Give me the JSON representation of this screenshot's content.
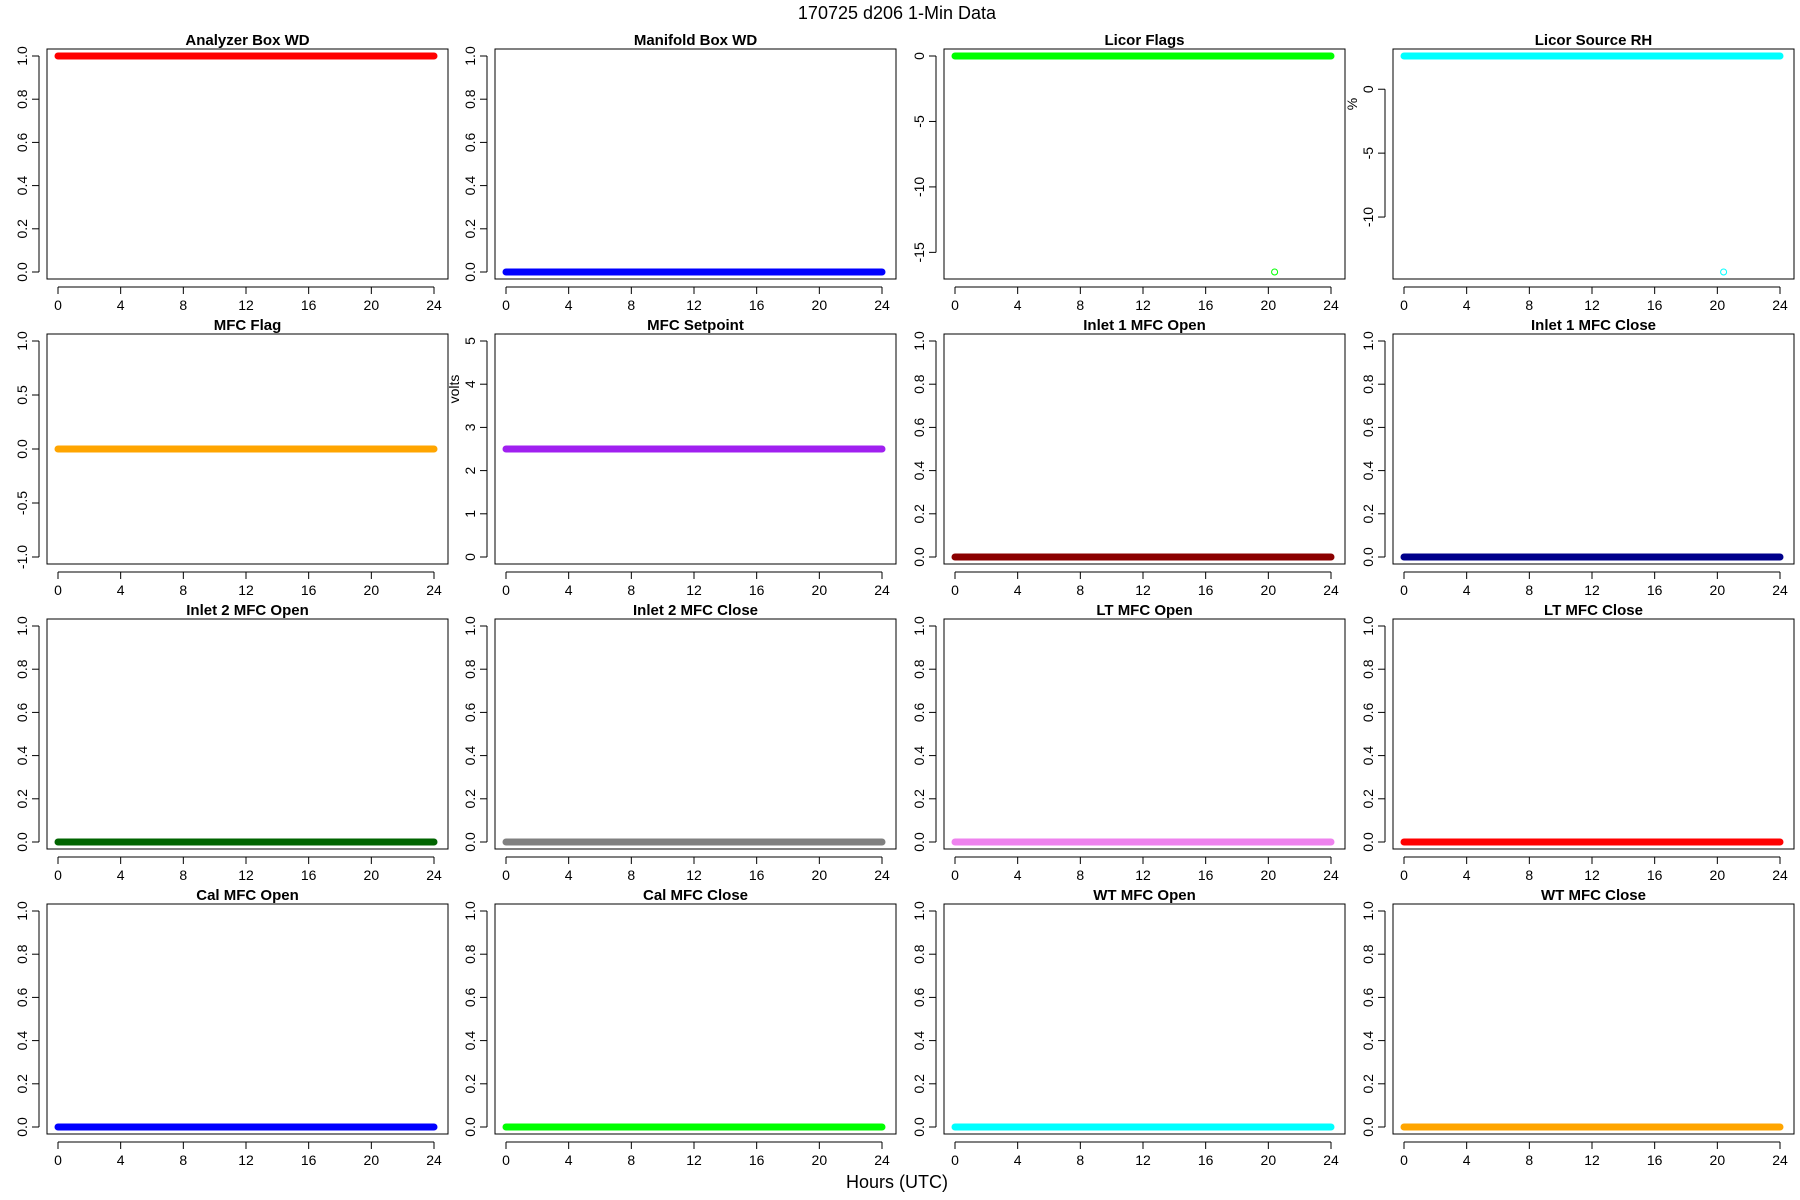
{
  "figure": {
    "title": "170725   d206   1-Min Data",
    "xlabel": "Hours (UTC)"
  },
  "chart_data": [
    {
      "type": "scatter",
      "title": "Analyzer Box WD",
      "ylabel": "",
      "color": "#ff0000",
      "xlim": [
        0,
        24
      ],
      "ylim": [
        0,
        1
      ],
      "yticks": [
        0,
        0.2,
        0.4,
        0.6,
        0.8,
        1.0
      ],
      "yticklabels": [
        "0.0",
        "0.2",
        "0.4",
        "0.6",
        "0.8",
        "1.0"
      ],
      "xticks": [
        0,
        4,
        8,
        12,
        16,
        20,
        24
      ],
      "series": [
        {
          "x_range": [
            0,
            24
          ],
          "y": 1.0
        }
      ],
      "outliers": []
    },
    {
      "type": "scatter",
      "title": "Manifold Box WD",
      "ylabel": "",
      "color": "#0000ff",
      "xlim": [
        0,
        24
      ],
      "ylim": [
        0,
        1
      ],
      "yticks": [
        0,
        0.2,
        0.4,
        0.6,
        0.8,
        1.0
      ],
      "yticklabels": [
        "0.0",
        "0.2",
        "0.4",
        "0.6",
        "0.8",
        "1.0"
      ],
      "xticks": [
        0,
        4,
        8,
        12,
        16,
        20,
        24
      ],
      "series": [
        {
          "x_range": [
            0,
            24
          ],
          "y": 0.0
        }
      ],
      "outliers": []
    },
    {
      "type": "scatter",
      "title": "Licor Flags",
      "ylabel": "",
      "color": "#00ff00",
      "xlim": [
        0,
        24
      ],
      "ylim": [
        -16.5,
        0
      ],
      "yticks": [
        -15,
        -10,
        -5,
        0
      ],
      "yticklabels": [
        "-15",
        "-10",
        "-5",
        "0"
      ],
      "xticks": [
        0,
        4,
        8,
        12,
        16,
        20,
        24
      ],
      "series": [
        {
          "x_range": [
            0,
            24
          ],
          "y": 0
        }
      ],
      "outliers": [
        {
          "x": 20.4,
          "y": -16.5
        }
      ]
    },
    {
      "type": "scatter",
      "title": "Licor Source RH",
      "ylabel": "%",
      "color": "#00ffff",
      "xlim": [
        0,
        24
      ],
      "ylim": [
        -14.3,
        2.6
      ],
      "yticks": [
        -10,
        -5,
        0
      ],
      "yticklabels": [
        "-10",
        "-5",
        "0"
      ],
      "xticks": [
        0,
        4,
        8,
        12,
        16,
        20,
        24
      ],
      "series": [
        {
          "x_range": [
            0,
            24
          ],
          "y": 2.6
        }
      ],
      "outliers": [
        {
          "x": 20.4,
          "y": -14.3
        }
      ]
    },
    {
      "type": "scatter",
      "title": "MFC Flag",
      "ylabel": "",
      "color": "#ffa500",
      "xlim": [
        0,
        24
      ],
      "ylim": [
        -1,
        1
      ],
      "yticks": [
        -1,
        -0.5,
        0,
        0.5,
        1
      ],
      "yticklabels": [
        "-1.0",
        "-0.5",
        "0.0",
        "0.5",
        "1.0"
      ],
      "xticks": [
        0,
        4,
        8,
        12,
        16,
        20,
        24
      ],
      "series": [
        {
          "x_range": [
            0,
            24
          ],
          "y": 0.0
        }
      ],
      "outliers": []
    },
    {
      "type": "scatter",
      "title": "MFC Setpoint",
      "ylabel": "volts",
      "color": "#a020f0",
      "xlim": [
        0,
        24
      ],
      "ylim": [
        0,
        5
      ],
      "yticks": [
        0,
        1,
        2,
        3,
        4,
        5
      ],
      "yticklabels": [
        "0",
        "1",
        "2",
        "3",
        "4",
        "5"
      ],
      "xticks": [
        0,
        4,
        8,
        12,
        16,
        20,
        24
      ],
      "series": [
        {
          "x_range": [
            0,
            24
          ],
          "y": 2.5
        }
      ],
      "outliers": []
    },
    {
      "type": "scatter",
      "title": "Inlet 1 MFC Open",
      "ylabel": "",
      "color": "#8b0000",
      "xlim": [
        0,
        24
      ],
      "ylim": [
        0,
        1
      ],
      "yticks": [
        0,
        0.2,
        0.4,
        0.6,
        0.8,
        1.0
      ],
      "yticklabels": [
        "0.0",
        "0.2",
        "0.4",
        "0.6",
        "0.8",
        "1.0"
      ],
      "xticks": [
        0,
        4,
        8,
        12,
        16,
        20,
        24
      ],
      "series": [
        {
          "x_range": [
            0,
            24
          ],
          "y": 0.0
        }
      ],
      "outliers": []
    },
    {
      "type": "scatter",
      "title": "Inlet 1 MFC Close",
      "ylabel": "",
      "color": "#00008b",
      "xlim": [
        0,
        24
      ],
      "ylim": [
        0,
        1
      ],
      "yticks": [
        0,
        0.2,
        0.4,
        0.6,
        0.8,
        1.0
      ],
      "yticklabels": [
        "0.0",
        "0.2",
        "0.4",
        "0.6",
        "0.8",
        "1.0"
      ],
      "xticks": [
        0,
        4,
        8,
        12,
        16,
        20,
        24
      ],
      "series": [
        {
          "x_range": [
            0,
            24
          ],
          "y": 0.0
        }
      ],
      "outliers": []
    },
    {
      "type": "scatter",
      "title": "Inlet 2 MFC Open",
      "ylabel": "",
      "color": "#006400",
      "xlim": [
        0,
        24
      ],
      "ylim": [
        0,
        1
      ],
      "yticks": [
        0,
        0.2,
        0.4,
        0.6,
        0.8,
        1.0
      ],
      "yticklabels": [
        "0.0",
        "0.2",
        "0.4",
        "0.6",
        "0.8",
        "1.0"
      ],
      "xticks": [
        0,
        4,
        8,
        12,
        16,
        20,
        24
      ],
      "series": [
        {
          "x_range": [
            0,
            24
          ],
          "y": 0.0
        }
      ],
      "outliers": []
    },
    {
      "type": "scatter",
      "title": "Inlet 2 MFC Close",
      "ylabel": "",
      "color": "#808080",
      "xlim": [
        0,
        24
      ],
      "ylim": [
        0,
        1
      ],
      "yticks": [
        0,
        0.2,
        0.4,
        0.6,
        0.8,
        1.0
      ],
      "yticklabels": [
        "0.0",
        "0.2",
        "0.4",
        "0.6",
        "0.8",
        "1.0"
      ],
      "xticks": [
        0,
        4,
        8,
        12,
        16,
        20,
        24
      ],
      "series": [
        {
          "x_range": [
            0,
            24
          ],
          "y": 0.0
        }
      ],
      "outliers": []
    },
    {
      "type": "scatter",
      "title": "LT MFC Open",
      "ylabel": "",
      "color": "#ee82ee",
      "xlim": [
        0,
        24
      ],
      "ylim": [
        0,
        1
      ],
      "yticks": [
        0,
        0.2,
        0.4,
        0.6,
        0.8,
        1.0
      ],
      "yticklabels": [
        "0.0",
        "0.2",
        "0.4",
        "0.6",
        "0.8",
        "1.0"
      ],
      "xticks": [
        0,
        4,
        8,
        12,
        16,
        20,
        24
      ],
      "series": [
        {
          "x_range": [
            0,
            24
          ],
          "y": 0.0
        }
      ],
      "outliers": []
    },
    {
      "type": "scatter",
      "title": "LT MFC Close",
      "ylabel": "",
      "color": "#ff0000",
      "xlim": [
        0,
        24
      ],
      "ylim": [
        0,
        1
      ],
      "yticks": [
        0,
        0.2,
        0.4,
        0.6,
        0.8,
        1.0
      ],
      "yticklabels": [
        "0.0",
        "0.2",
        "0.4",
        "0.6",
        "0.8",
        "1.0"
      ],
      "xticks": [
        0,
        4,
        8,
        12,
        16,
        20,
        24
      ],
      "series": [
        {
          "x_range": [
            0,
            24
          ],
          "y": 0.0
        }
      ],
      "outliers": []
    },
    {
      "type": "scatter",
      "title": "Cal MFC Open",
      "ylabel": "",
      "color": "#0000ff",
      "xlim": [
        0,
        24
      ],
      "ylim": [
        0,
        1
      ],
      "yticks": [
        0,
        0.2,
        0.4,
        0.6,
        0.8,
        1.0
      ],
      "yticklabels": [
        "0.0",
        "0.2",
        "0.4",
        "0.6",
        "0.8",
        "1.0"
      ],
      "xticks": [
        0,
        4,
        8,
        12,
        16,
        20,
        24
      ],
      "series": [
        {
          "x_range": [
            0,
            24
          ],
          "y": 0.0
        }
      ],
      "outliers": []
    },
    {
      "type": "scatter",
      "title": "Cal MFC Close",
      "ylabel": "",
      "color": "#00ff00",
      "xlim": [
        0,
        24
      ],
      "ylim": [
        0,
        1
      ],
      "yticks": [
        0,
        0.2,
        0.4,
        0.6,
        0.8,
        1.0
      ],
      "yticklabels": [
        "0.0",
        "0.2",
        "0.4",
        "0.6",
        "0.8",
        "1.0"
      ],
      "xticks": [
        0,
        4,
        8,
        12,
        16,
        20,
        24
      ],
      "series": [
        {
          "x_range": [
            0,
            24
          ],
          "y": 0.0
        }
      ],
      "outliers": []
    },
    {
      "type": "scatter",
      "title": "WT MFC Open",
      "ylabel": "",
      "color": "#00ffff",
      "xlim": [
        0,
        24
      ],
      "ylim": [
        0,
        1
      ],
      "yticks": [
        0,
        0.2,
        0.4,
        0.6,
        0.8,
        1.0
      ],
      "yticklabels": [
        "0.0",
        "0.2",
        "0.4",
        "0.6",
        "0.8",
        "1.0"
      ],
      "xticks": [
        0,
        4,
        8,
        12,
        16,
        20,
        24
      ],
      "series": [
        {
          "x_range": [
            0,
            24
          ],
          "y": 0.0
        }
      ],
      "outliers": []
    },
    {
      "type": "scatter",
      "title": "WT MFC Close",
      "ylabel": "",
      "color": "#ffa500",
      "xlim": [
        0,
        24
      ],
      "ylim": [
        0,
        1
      ],
      "yticks": [
        0,
        0.2,
        0.4,
        0.6,
        0.8,
        1.0
      ],
      "yticklabels": [
        "0.0",
        "0.2",
        "0.4",
        "0.6",
        "0.8",
        "1.0"
      ],
      "xticks": [
        0,
        4,
        8,
        12,
        16,
        20,
        24
      ],
      "series": [
        {
          "x_range": [
            0,
            24
          ],
          "y": 0.0
        }
      ],
      "outliers": []
    }
  ]
}
